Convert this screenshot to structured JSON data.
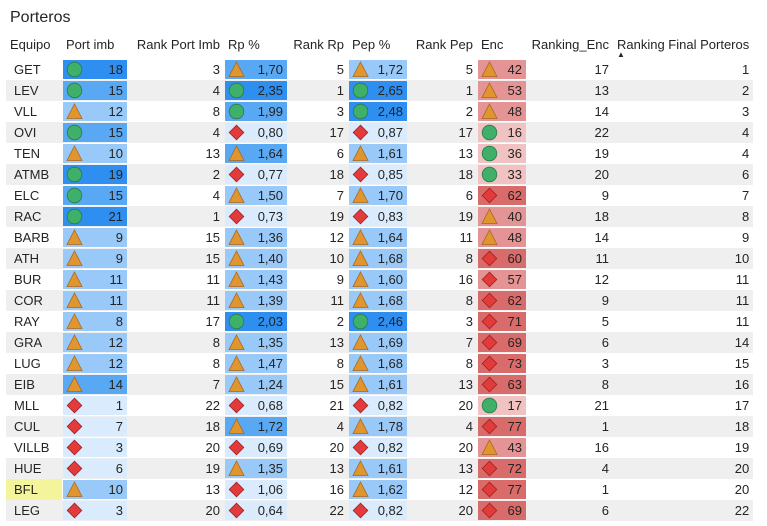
{
  "title": "Porteros",
  "headers": {
    "team": "Equipo",
    "port_imb": "Port imb",
    "rank_port_imb": "Rank Port Imb",
    "rp": "Rp %",
    "rank_rp": "Rank Rp",
    "pep": "Pep %",
    "rank_pep": "Rank Pep",
    "enc": "Enc",
    "ranking_enc": "Ranking_Enc",
    "ranking_final": "Ranking Final Porteros"
  },
  "sort_indicator": "▲",
  "colors": {
    "blue_dark": "#2f8ff0",
    "blue_mid": "#58a8f4",
    "blue_light": "#99c9f8",
    "blue_pale": "#d9ebfc",
    "red_dark": "#d96b6b",
    "red_mid": "#e49494",
    "red_light": "#f0c2c2",
    "green": "#3fb06a",
    "orange": "#e0952f",
    "red_icon": "#e23b3b",
    "highlight": "#f4f49c"
  },
  "rows": [
    {
      "team": "GET",
      "port_imb": "18",
      "port_imb_icon": "circle",
      "rank_port_imb": "3",
      "rp": "1,70",
      "rp_icon": "triangle",
      "rank_rp": "5",
      "pep": "1,72",
      "pep_icon": "triangle",
      "rank_pep": "5",
      "enc": "42",
      "enc_icon": "triangle",
      "ranking_enc": "17",
      "ranking_final": "1"
    },
    {
      "team": "LEV",
      "port_imb": "15",
      "port_imb_icon": "circle",
      "rank_port_imb": "4",
      "rp": "2,35",
      "rp_icon": "circle",
      "rank_rp": "1",
      "pep": "2,65",
      "pep_icon": "circle",
      "rank_pep": "1",
      "enc": "53",
      "enc_icon": "triangle",
      "ranking_enc": "13",
      "ranking_final": "2"
    },
    {
      "team": "VLL",
      "port_imb": "12",
      "port_imb_icon": "triangle",
      "rank_port_imb": "8",
      "rp": "1,99",
      "rp_icon": "circle",
      "rank_rp": "3",
      "pep": "2,48",
      "pep_icon": "circle",
      "rank_pep": "2",
      "enc": "48",
      "enc_icon": "triangle",
      "ranking_enc": "14",
      "ranking_final": "3"
    },
    {
      "team": "OVI",
      "port_imb": "15",
      "port_imb_icon": "circle",
      "rank_port_imb": "4",
      "rp": "0,80",
      "rp_icon": "diamond",
      "rank_rp": "17",
      "pep": "0,87",
      "pep_icon": "diamond",
      "rank_pep": "17",
      "enc": "16",
      "enc_icon": "circle",
      "ranking_enc": "22",
      "ranking_final": "4"
    },
    {
      "team": "TEN",
      "port_imb": "10",
      "port_imb_icon": "triangle",
      "rank_port_imb": "13",
      "rp": "1,64",
      "rp_icon": "triangle",
      "rank_rp": "6",
      "pep": "1,61",
      "pep_icon": "triangle",
      "rank_pep": "13",
      "enc": "36",
      "enc_icon": "circle",
      "ranking_enc": "19",
      "ranking_final": "4"
    },
    {
      "team": "ATMB",
      "port_imb": "19",
      "port_imb_icon": "circle",
      "rank_port_imb": "2",
      "rp": "0,77",
      "rp_icon": "diamond",
      "rank_rp": "18",
      "pep": "0,85",
      "pep_icon": "diamond",
      "rank_pep": "18",
      "enc": "33",
      "enc_icon": "circle",
      "ranking_enc": "20",
      "ranking_final": "6"
    },
    {
      "team": "ELC",
      "port_imb": "15",
      "port_imb_icon": "circle",
      "rank_port_imb": "4",
      "rp": "1,50",
      "rp_icon": "triangle",
      "rank_rp": "7",
      "pep": "1,70",
      "pep_icon": "triangle",
      "rank_pep": "6",
      "enc": "62",
      "enc_icon": "diamond",
      "ranking_enc": "9",
      "ranking_final": "7"
    },
    {
      "team": "RAC",
      "port_imb": "21",
      "port_imb_icon": "circle",
      "rank_port_imb": "1",
      "rp": "0,73",
      "rp_icon": "diamond",
      "rank_rp": "19",
      "pep": "0,83",
      "pep_icon": "diamond",
      "rank_pep": "19",
      "enc": "40",
      "enc_icon": "triangle",
      "ranking_enc": "18",
      "ranking_final": "8"
    },
    {
      "team": "BARB",
      "port_imb": "9",
      "port_imb_icon": "triangle",
      "rank_port_imb": "15",
      "rp": "1,36",
      "rp_icon": "triangle",
      "rank_rp": "12",
      "pep": "1,64",
      "pep_icon": "triangle",
      "rank_pep": "11",
      "enc": "48",
      "enc_icon": "triangle",
      "ranking_enc": "14",
      "ranking_final": "9"
    },
    {
      "team": "ATH",
      "port_imb": "9",
      "port_imb_icon": "triangle",
      "rank_port_imb": "15",
      "rp": "1,40",
      "rp_icon": "triangle",
      "rank_rp": "10",
      "pep": "1,68",
      "pep_icon": "triangle",
      "rank_pep": "8",
      "enc": "60",
      "enc_icon": "diamond",
      "ranking_enc": "11",
      "ranking_final": "10"
    },
    {
      "team": "BUR",
      "port_imb": "11",
      "port_imb_icon": "triangle",
      "rank_port_imb": "11",
      "rp": "1,43",
      "rp_icon": "triangle",
      "rank_rp": "9",
      "pep": "1,60",
      "pep_icon": "triangle",
      "rank_pep": "16",
      "enc": "57",
      "enc_icon": "diamond",
      "ranking_enc": "12",
      "ranking_final": "11"
    },
    {
      "team": "COR",
      "port_imb": "11",
      "port_imb_icon": "triangle",
      "rank_port_imb": "11",
      "rp": "1,39",
      "rp_icon": "triangle",
      "rank_rp": "11",
      "pep": "1,68",
      "pep_icon": "triangle",
      "rank_pep": "8",
      "enc": "62",
      "enc_icon": "diamond",
      "ranking_enc": "9",
      "ranking_final": "11"
    },
    {
      "team": "RAY",
      "port_imb": "8",
      "port_imb_icon": "triangle",
      "rank_port_imb": "17",
      "rp": "2,03",
      "rp_icon": "circle",
      "rank_rp": "2",
      "pep": "2,46",
      "pep_icon": "circle",
      "rank_pep": "3",
      "enc": "71",
      "enc_icon": "diamond",
      "ranking_enc": "5",
      "ranking_final": "11"
    },
    {
      "team": "GRA",
      "port_imb": "12",
      "port_imb_icon": "triangle",
      "rank_port_imb": "8",
      "rp": "1,35",
      "rp_icon": "triangle",
      "rank_rp": "13",
      "pep": "1,69",
      "pep_icon": "triangle",
      "rank_pep": "7",
      "enc": "69",
      "enc_icon": "diamond",
      "ranking_enc": "6",
      "ranking_final": "14"
    },
    {
      "team": "LUG",
      "port_imb": "12",
      "port_imb_icon": "triangle",
      "rank_port_imb": "8",
      "rp": "1,47",
      "rp_icon": "triangle",
      "rank_rp": "8",
      "pep": "1,68",
      "pep_icon": "triangle",
      "rank_pep": "8",
      "enc": "73",
      "enc_icon": "diamond",
      "ranking_enc": "3",
      "ranking_final": "15"
    },
    {
      "team": "EIB",
      "port_imb": "14",
      "port_imb_icon": "triangle",
      "rank_port_imb": "7",
      "rp": "1,24",
      "rp_icon": "triangle",
      "rank_rp": "15",
      "pep": "1,61",
      "pep_icon": "triangle",
      "rank_pep": "13",
      "enc": "63",
      "enc_icon": "diamond",
      "ranking_enc": "8",
      "ranking_final": "16"
    },
    {
      "team": "MLL",
      "port_imb": "1",
      "port_imb_icon": "diamond",
      "rank_port_imb": "22",
      "rp": "0,68",
      "rp_icon": "diamond",
      "rank_rp": "21",
      "pep": "0,82",
      "pep_icon": "diamond",
      "rank_pep": "20",
      "enc": "17",
      "enc_icon": "circle",
      "ranking_enc": "21",
      "ranking_final": "17"
    },
    {
      "team": "CUL",
      "port_imb": "7",
      "port_imb_icon": "diamond",
      "rank_port_imb": "18",
      "rp": "1,72",
      "rp_icon": "triangle",
      "rank_rp": "4",
      "pep": "1,78",
      "pep_icon": "triangle",
      "rank_pep": "4",
      "enc": "77",
      "enc_icon": "diamond",
      "ranking_enc": "1",
      "ranking_final": "18"
    },
    {
      "team": "VILLB",
      "port_imb": "3",
      "port_imb_icon": "diamond",
      "rank_port_imb": "20",
      "rp": "0,69",
      "rp_icon": "diamond",
      "rank_rp": "20",
      "pep": "0,82",
      "pep_icon": "diamond",
      "rank_pep": "20",
      "enc": "43",
      "enc_icon": "triangle",
      "ranking_enc": "16",
      "ranking_final": "19"
    },
    {
      "team": "HUE",
      "port_imb": "6",
      "port_imb_icon": "diamond",
      "rank_port_imb": "19",
      "rp": "1,35",
      "rp_icon": "triangle",
      "rank_rp": "13",
      "pep": "1,61",
      "pep_icon": "triangle",
      "rank_pep": "13",
      "enc": "72",
      "enc_icon": "diamond",
      "ranking_enc": "4",
      "ranking_final": "20"
    },
    {
      "team": "BFL",
      "port_imb": "10",
      "port_imb_icon": "triangle",
      "rank_port_imb": "13",
      "rp": "1,06",
      "rp_icon": "diamond",
      "rank_rp": "16",
      "pep": "1,62",
      "pep_icon": "triangle",
      "rank_pep": "12",
      "enc": "77",
      "enc_icon": "diamond",
      "ranking_enc": "1",
      "ranking_final": "20",
      "highlight": true
    },
    {
      "team": "LEG",
      "port_imb": "3",
      "port_imb_icon": "diamond",
      "rank_port_imb": "20",
      "rp": "0,64",
      "rp_icon": "diamond",
      "rank_rp": "22",
      "pep": "0,82",
      "pep_icon": "diamond",
      "rank_pep": "20",
      "enc": "69",
      "enc_icon": "diamond",
      "ranking_enc": "6",
      "ranking_final": "22"
    }
  ]
}
